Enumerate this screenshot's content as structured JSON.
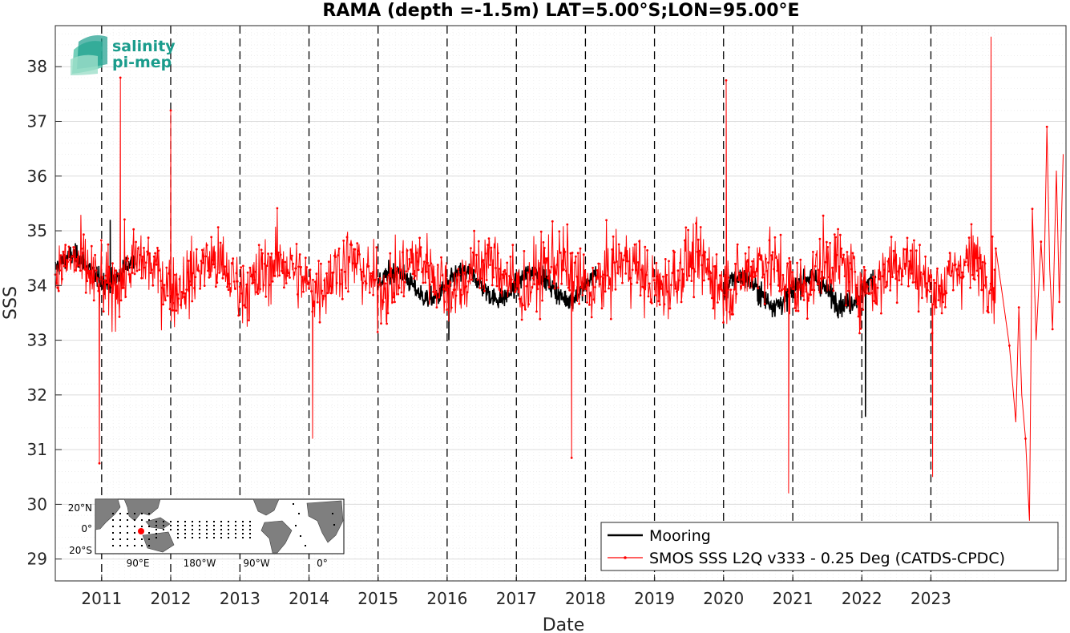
{
  "logo": {
    "line1": "salinity",
    "line2": "pi-mep"
  },
  "chart_data": {
    "type": "line",
    "title": "RAMA (depth =-1.5m) LAT=5.00°S;LON=95.00°E",
    "xlabel": "Date",
    "ylabel": "SSS",
    "x_tick_labels": [
      "2011",
      "2012",
      "2013",
      "2014",
      "2015",
      "2016",
      "2017",
      "2018",
      "2019",
      "2020",
      "2021",
      "2022",
      "2023"
    ],
    "y_tick_labels": [
      "29",
      "30",
      "31",
      "32",
      "33",
      "34",
      "35",
      "36",
      "37",
      "38"
    ],
    "xlim": [
      "2010-05-01",
      "2024-12-15"
    ],
    "ylim": [
      28.6,
      38.75
    ],
    "grid": true,
    "legend_position": "bottom-right",
    "vertical_year_lines": [
      "2011",
      "2012",
      "2013",
      "2014",
      "2015",
      "2016",
      "2017",
      "2018",
      "2019",
      "2020",
      "2021",
      "2022",
      "2023"
    ],
    "series": [
      {
        "name": "Mooring",
        "color": "#000000",
        "style": "line",
        "segments": [
          {
            "start": "2010-05-01",
            "end": "2011-06-30",
            "mean": 34.3,
            "amplitude": 0.45
          },
          {
            "start": "2015-01-01",
            "end": "2018-03-01",
            "mean": 34.0,
            "amplitude": 0.45
          },
          {
            "start": "2020-01-01",
            "end": "2022-03-15",
            "mean": 33.9,
            "amplitude": 0.5
          }
        ],
        "extremes": [
          {
            "x": "2011-02-15",
            "y": 35.2
          },
          {
            "x": "2016-01-10",
            "y": 33.0
          },
          {
            "x": "2022-01-20",
            "y": 31.6
          }
        ]
      },
      {
        "name": "SMOS SSS L2Q v333 - 0.25 Deg (CATDS-CPDC)",
        "color": "#ff0000",
        "style": "line-with-points",
        "segments": [
          {
            "start": "2010-05-01",
            "end": "2023-12-10",
            "mean": 34.2,
            "amplitude": 1.0
          }
        ],
        "sparse_tail": [
          {
            "x": "2024-01-15",
            "y": 33.8
          },
          {
            "x": "2024-02-20",
            "y": 32.9
          },
          {
            "x": "2024-03-25",
            "y": 31.5
          },
          {
            "x": "2024-04-10",
            "y": 33.6
          },
          {
            "x": "2024-04-25",
            "y": 32.0
          },
          {
            "x": "2024-05-15",
            "y": 31.2
          },
          {
            "x": "2024-06-05",
            "y": 29.7
          },
          {
            "x": "2024-06-20",
            "y": 35.4
          },
          {
            "x": "2024-07-10",
            "y": 33.0
          },
          {
            "x": "2024-08-05",
            "y": 34.8
          },
          {
            "x": "2024-08-20",
            "y": 33.9
          },
          {
            "x": "2024-09-05",
            "y": 36.9
          },
          {
            "x": "2024-09-20",
            "y": 34.3
          },
          {
            "x": "2024-10-05",
            "y": 33.2
          },
          {
            "x": "2024-10-25",
            "y": 36.1
          },
          {
            "x": "2024-11-10",
            "y": 33.7
          },
          {
            "x": "2024-11-30",
            "y": 36.4
          }
        ],
        "extremes": [
          {
            "x": "2010-12-20",
            "y": 30.75
          },
          {
            "x": "2011-04-10",
            "y": 37.8
          },
          {
            "x": "2012-01-01",
            "y": 37.2
          },
          {
            "x": "2014-01-20",
            "y": 31.2
          },
          {
            "x": "2017-10-20",
            "y": 30.85
          },
          {
            "x": "2020-01-15",
            "y": 37.75
          },
          {
            "x": "2020-12-10",
            "y": 30.2
          },
          {
            "x": "2023-01-10",
            "y": 30.5
          },
          {
            "x": "2023-11-15",
            "y": 38.55
          }
        ]
      }
    ]
  },
  "inset_map": {
    "lat_labels": [
      "20°N",
      "0°",
      "20°S"
    ],
    "lon_labels": [
      "90°E",
      "180°W",
      "90°W",
      "0°"
    ]
  }
}
